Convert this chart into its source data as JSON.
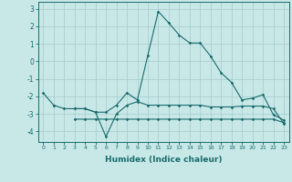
{
  "xlabel": "Humidex (Indice chaleur)",
  "x": [
    0,
    1,
    2,
    3,
    4,
    5,
    6,
    7,
    8,
    9,
    10,
    11,
    12,
    13,
    14,
    15,
    16,
    17,
    18,
    19,
    20,
    21,
    22,
    23
  ],
  "line1": [
    -1.8,
    -2.5,
    null,
    -2.7,
    -2.7,
    -2.9,
    -2.9,
    -2.5,
    -1.8,
    -2.2,
    0.35,
    2.85,
    2.2,
    1.5,
    1.05,
    1.05,
    0.3,
    -0.65,
    -1.2,
    -2.2,
    -2.1,
    -1.9,
    -3.05,
    -3.35
  ],
  "line2": [
    null,
    -2.5,
    -2.7,
    -2.7,
    -2.7,
    -2.9,
    -4.3,
    -3.0,
    -2.5,
    -2.3,
    -2.5,
    -2.5,
    -2.5,
    -2.5,
    -2.5,
    -2.5,
    -2.6,
    -2.6,
    -2.6,
    -2.55,
    -2.55,
    -2.55,
    -2.7,
    -3.55
  ],
  "line3": [
    null,
    null,
    null,
    -3.3,
    -3.3,
    -3.3,
    -3.3,
    -3.3,
    -3.3,
    -3.3,
    -3.3,
    -3.3,
    -3.3,
    -3.3,
    -3.3,
    -3.3,
    -3.3,
    -3.3,
    -3.3,
    -3.3,
    -3.3,
    -3.3,
    -3.3,
    -3.5
  ],
  "bg_color": "#c8e8e8",
  "grid_color": "#aacece",
  "line_color": "#1a6b6b",
  "ylim": [
    -4.6,
    3.4
  ],
  "xlim": [
    -0.5,
    23.5
  ],
  "yticks": [
    -4,
    -3,
    -2,
    -1,
    0,
    1,
    2,
    3
  ],
  "xticks": [
    0,
    1,
    2,
    3,
    4,
    5,
    6,
    7,
    8,
    9,
    10,
    11,
    12,
    13,
    14,
    15,
    16,
    17,
    18,
    19,
    20,
    21,
    22,
    23
  ],
  "figsize": [
    3.2,
    2.0
  ],
  "dpi": 100
}
